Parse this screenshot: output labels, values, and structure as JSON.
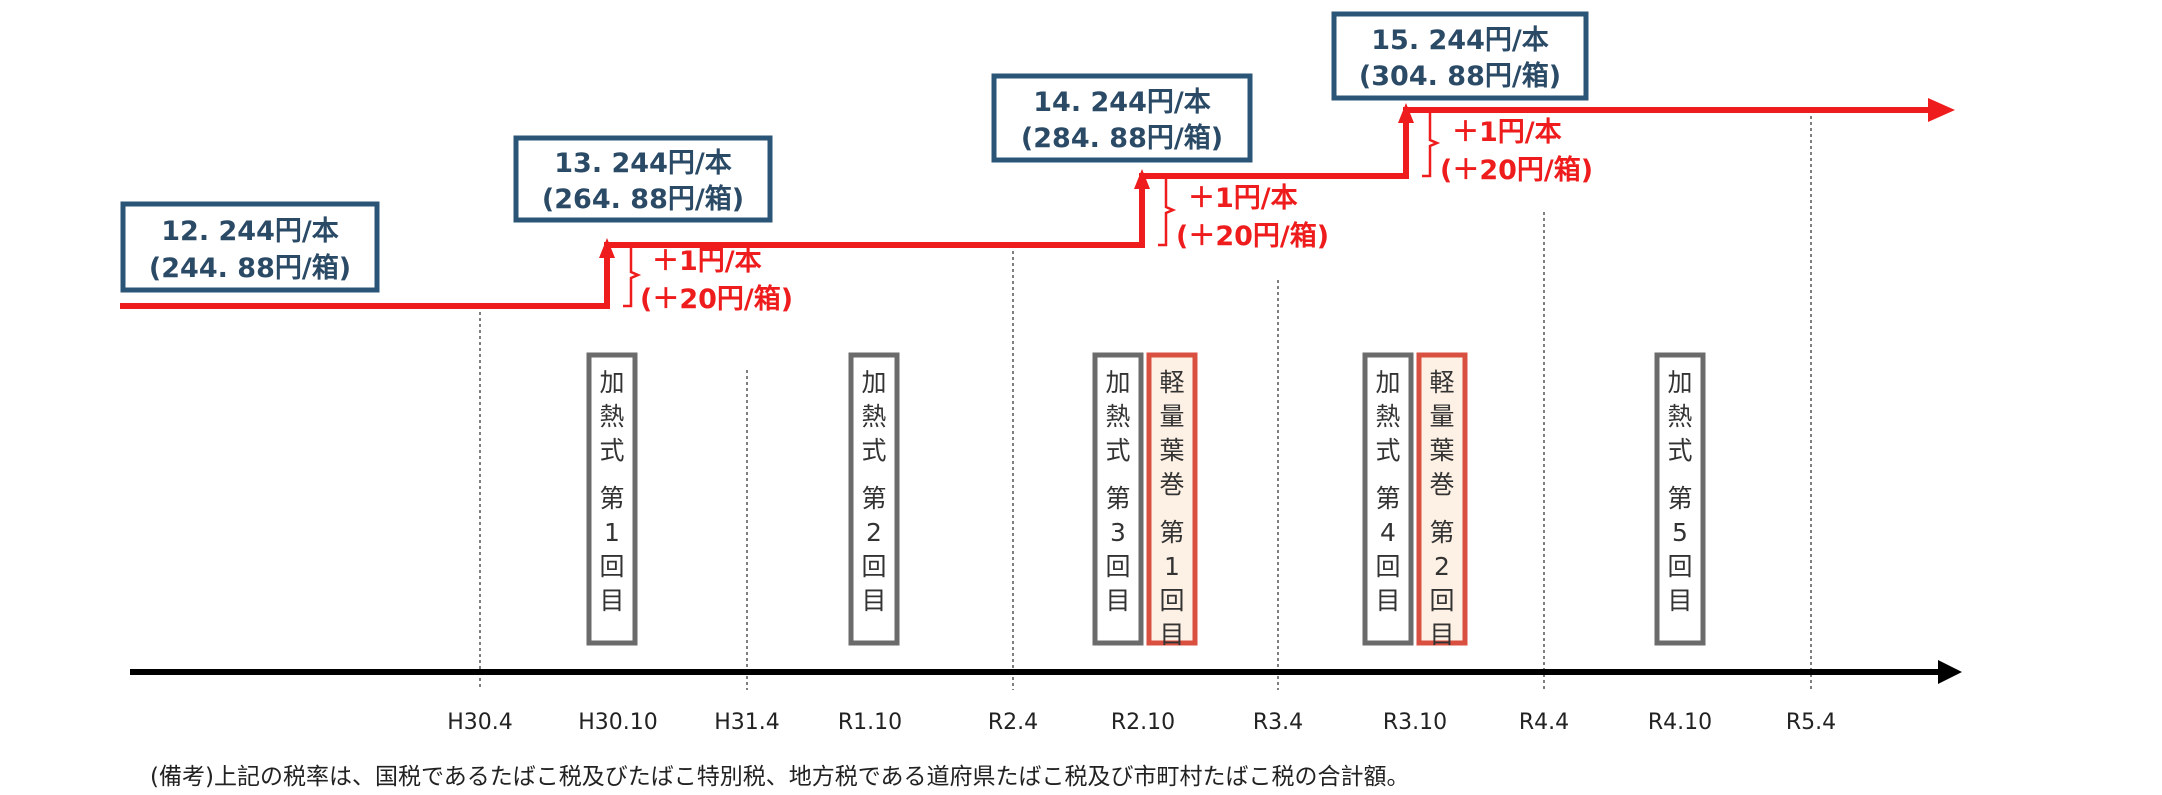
{
  "rates": [
    {
      "line1": "12. 244円/本",
      "line2": "(244. 88円/箱)"
    },
    {
      "line1": "13. 244円/本",
      "line2": "(264. 88円/箱)"
    },
    {
      "line1": "14. 244円/本",
      "line2": "(284. 88円/箱)"
    },
    {
      "line1": "15. 244円/本",
      "line2": "(304. 88円/箱)"
    }
  ],
  "increases": [
    {
      "line1": "＋1円/本",
      "line2": "(＋20円/箱)"
    },
    {
      "line1": "＋1円/本",
      "line2": "(＋20円/箱)"
    },
    {
      "line1": "＋1円/本",
      "line2": "(＋20円/箱)"
    }
  ],
  "ticks": [
    "H30.4",
    "H30.10",
    "H31.4",
    "R1.10",
    "R2.4",
    "R2.10",
    "R3.4",
    "R3.10",
    "R4.4",
    "R4.10",
    "R5.4"
  ],
  "stage_boxes": [
    {
      "text": "加熱式第1回目",
      "kind": "heated"
    },
    {
      "text": "加熱式第2回目",
      "kind": "heated"
    },
    {
      "text": "加熱式第3回目",
      "kind": "heated"
    },
    {
      "text": "軽量葉巻第1回目",
      "kind": "cigar"
    },
    {
      "text": "加熱式第4回目",
      "kind": "heated"
    },
    {
      "text": "軽量葉巻第2回目",
      "kind": "cigar"
    },
    {
      "text": "加熱式第5回目",
      "kind": "heated"
    }
  ],
  "note": "(備考)上記の税率は、国税であるたばこ税及びたばこ特別税、地方税である道府県たばこ税及び市町村たばこ税の合計額。",
  "colors": {
    "rate_line": "#ee1c1c",
    "rate_box_border": "#2b5576",
    "heated_border": "#6b6b6b",
    "cigar_border": "#d95040",
    "cigar_fill": "#fdf0e4",
    "axis": "#000000"
  }
}
